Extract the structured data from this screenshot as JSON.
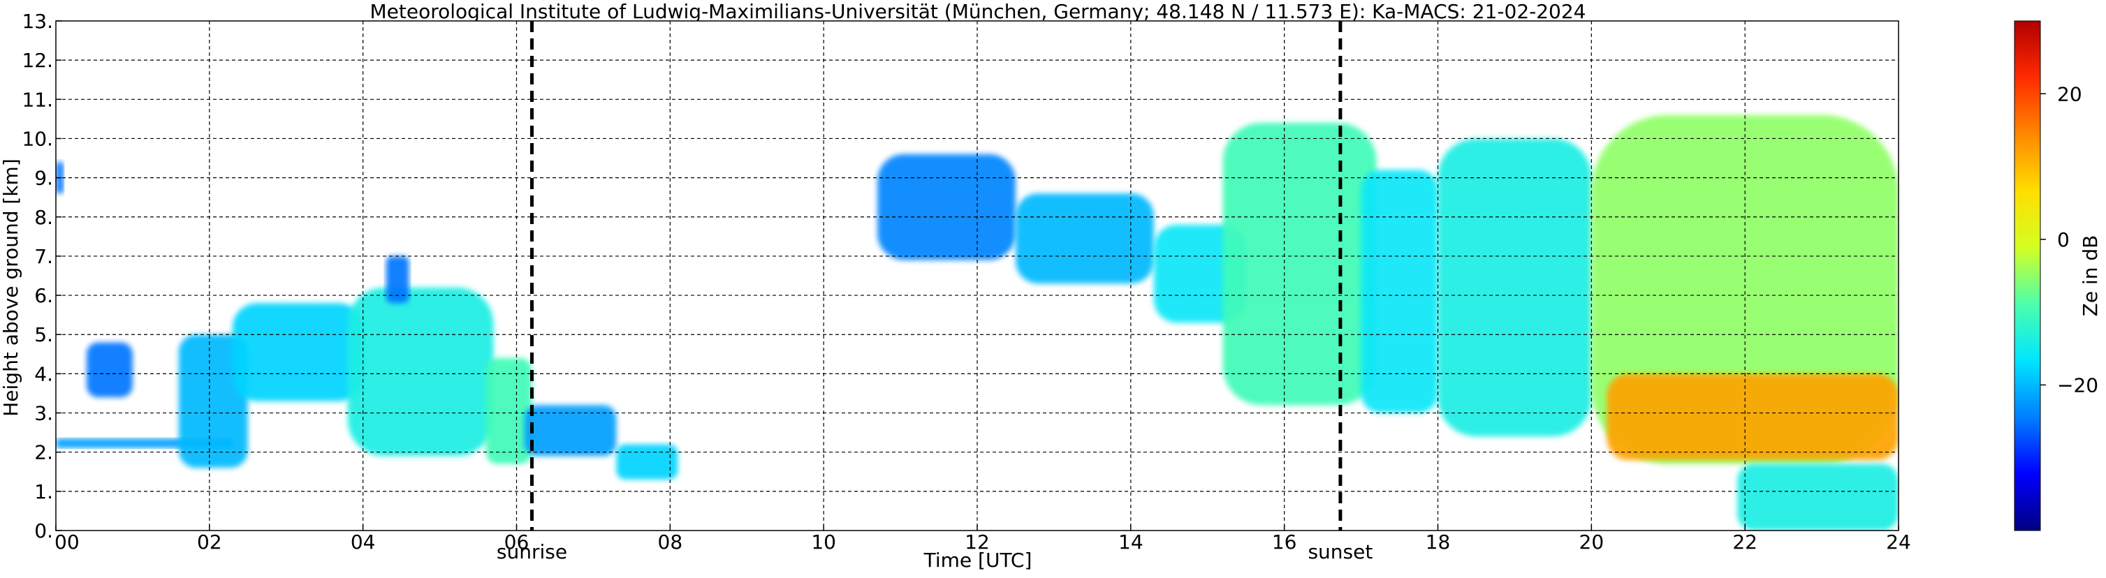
{
  "chart_data": {
    "type": "heatmap",
    "title": "Meteorological Institute of Ludwig-Maximilians-Universität (München, Germany; 48.148 N / 11.573 E):    Ka-MACS: 21-02-2024",
    "xlabel": "Time [UTC]",
    "ylabel": "Height above ground [km]",
    "xlim": [
      0,
      24
    ],
    "ylim": [
      0,
      13
    ],
    "x_ticks": [
      0,
      2,
      4,
      6,
      8,
      10,
      12,
      14,
      16,
      18,
      20,
      22,
      24
    ],
    "x_tick_labels": [
      "00",
      "02",
      "04",
      "06",
      "08",
      "10",
      "12",
      "14",
      "16",
      "18",
      "20",
      "22",
      "24"
    ],
    "y_ticks": [
      0,
      1,
      2,
      3,
      4,
      5,
      6,
      7,
      8,
      9,
      10,
      11,
      12,
      13
    ],
    "y_tick_labels": [
      "0.",
      "1.",
      "2.",
      "3.",
      "4.",
      "5.",
      "6.",
      "7.",
      "8.",
      "9.",
      "10.",
      "11.",
      "12.",
      "13."
    ],
    "grid": true,
    "colorbar": {
      "label": "Ze in dB",
      "ticks": [
        -20,
        0,
        20
      ],
      "tick_labels": [
        "−20",
        "0",
        "20"
      ],
      "range": [
        -40,
        30
      ],
      "colormap": [
        "#00007f",
        "#0000ff",
        "#007fff",
        "#00e5ff",
        "#4cffac",
        "#d4ff22",
        "#ffde00",
        "#ff8800",
        "#ff2a00",
        "#b00000"
      ]
    },
    "markers": [
      {
        "label": "sunrise",
        "x": 6.2
      },
      {
        "label": "sunset",
        "x": 16.73
      }
    ],
    "cloud_regions": [
      {
        "t0": 0.0,
        "t1": 0.1,
        "bottom": 8.6,
        "top": 9.4,
        "ze": -25
      },
      {
        "t0": 0.0,
        "t1": 2.3,
        "bottom": 2.1,
        "top": 2.35,
        "ze": -22
      },
      {
        "t0": 0.4,
        "t1": 1.0,
        "bottom": 3.4,
        "top": 4.8,
        "ze": -25
      },
      {
        "t0": 1.6,
        "t1": 2.5,
        "bottom": 1.6,
        "top": 5.0,
        "ze": -20
      },
      {
        "t0": 2.3,
        "t1": 4.0,
        "bottom": 3.3,
        "top": 5.8,
        "ze": -18
      },
      {
        "t0": 3.8,
        "t1": 5.7,
        "bottom": 1.9,
        "top": 6.2,
        "ze": -14
      },
      {
        "t0": 4.3,
        "t1": 4.6,
        "bottom": 5.8,
        "top": 7.0,
        "ze": -25
      },
      {
        "t0": 5.6,
        "t1": 6.2,
        "bottom": 1.7,
        "top": 4.4,
        "ze": -10
      },
      {
        "t0": 6.1,
        "t1": 7.3,
        "bottom": 1.9,
        "top": 3.2,
        "ze": -22
      },
      {
        "t0": 7.3,
        "t1": 8.1,
        "bottom": 1.3,
        "top": 2.2,
        "ze": -18
      },
      {
        "t0": 10.7,
        "t1": 12.5,
        "bottom": 6.9,
        "top": 9.6,
        "ze": -24
      },
      {
        "t0": 12.5,
        "t1": 14.3,
        "bottom": 6.3,
        "top": 8.6,
        "ze": -20
      },
      {
        "t0": 14.3,
        "t1": 15.5,
        "bottom": 5.3,
        "top": 7.8,
        "ze": -16
      },
      {
        "t0": 15.2,
        "t1": 17.2,
        "bottom": 3.2,
        "top": 10.4,
        "ze": -10
      },
      {
        "t0": 17.0,
        "t1": 18.0,
        "bottom": 3.0,
        "top": 9.2,
        "ze": -16
      },
      {
        "t0": 18.0,
        "t1": 20.0,
        "bottom": 2.4,
        "top": 10.0,
        "ze": -14
      },
      {
        "t0": 20.0,
        "t1": 24.0,
        "bottom": 1.7,
        "top": 10.6,
        "ze": -5
      },
      {
        "t0": 20.2,
        "t1": 24.0,
        "bottom": 1.8,
        "top": 4.0,
        "ze": 12
      },
      {
        "t0": 21.9,
        "t1": 24.0,
        "bottom": 0.0,
        "top": 1.7,
        "ze": -14
      }
    ]
  }
}
